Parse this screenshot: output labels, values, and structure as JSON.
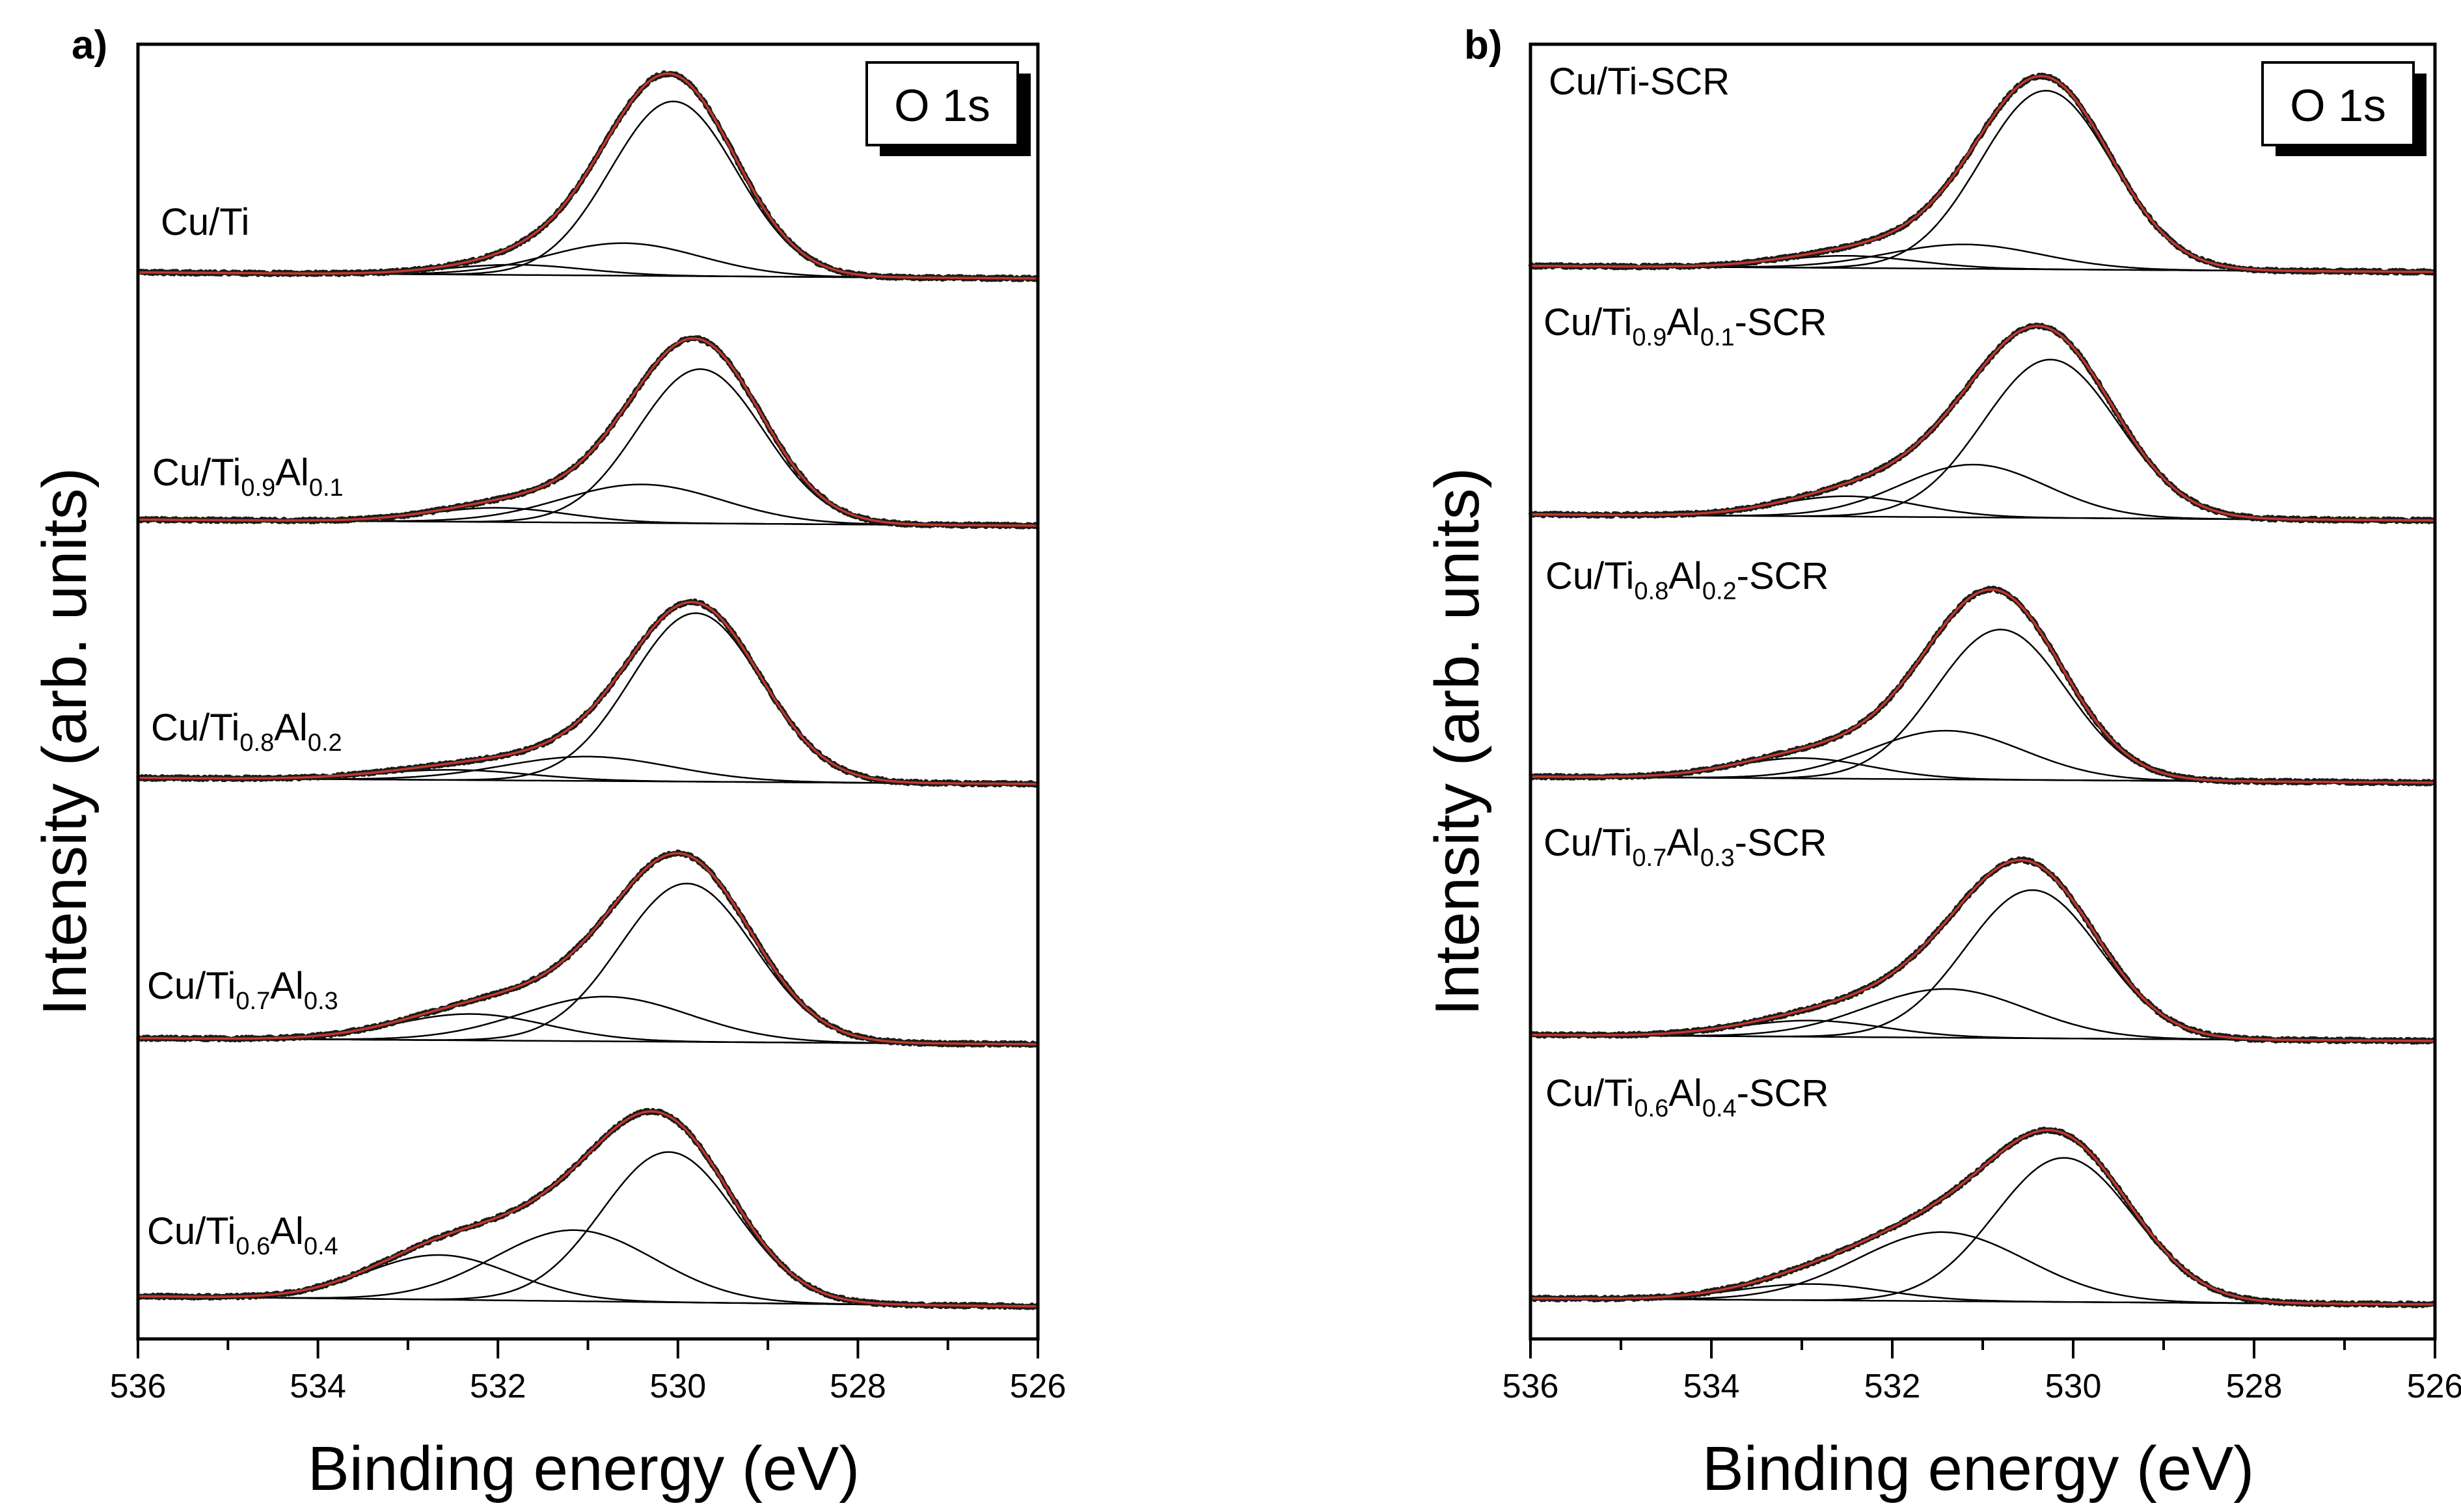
{
  "chart_data": [
    {
      "type": "line",
      "panel_label": "a)",
      "badge": "O 1s",
      "xlabel": "Binding energy (eV)",
      "ylabel": "Intensity (arb. units)",
      "xlim": [
        536,
        526
      ],
      "xticks": [
        "536",
        "534",
        "532",
        "530",
        "528",
        "526"
      ],
      "grid": false,
      "series": [
        {
          "name": "Cu/Ti",
          "label_parts": [
            {
              "t": "Cu/Ti",
              "sub": false
            }
          ],
          "components": [
            {
              "center": 530.05,
              "fwhm": 1.65,
              "height": 0.86
            },
            {
              "center": 530.6,
              "fwhm": 2.0,
              "height": 0.16
            },
            {
              "center": 531.8,
              "fwhm": 1.8,
              "height": 0.05
            }
          ],
          "baseline_left": 0.03,
          "baseline_right": 0.0
        },
        {
          "name": "Cu/Ti0.9Al0.1",
          "label_parts": [
            {
              "t": "Cu/Ti",
              "sub": false
            },
            {
              "t": "0.9",
              "sub": true
            },
            {
              "t": "Al",
              "sub": false
            },
            {
              "t": "0.1",
              "sub": true
            }
          ],
          "components": [
            {
              "center": 529.75,
              "fwhm": 1.65,
              "height": 0.76
            },
            {
              "center": 530.4,
              "fwhm": 2.1,
              "height": 0.19
            },
            {
              "center": 532.0,
              "fwhm": 1.8,
              "height": 0.07
            }
          ],
          "baseline_left": 0.03,
          "baseline_right": 0.0
        },
        {
          "name": "Cu/Ti0.8Al0.2",
          "label_parts": [
            {
              "t": "Cu/Ti",
              "sub": false
            },
            {
              "t": "0.8",
              "sub": true
            },
            {
              "t": "Al",
              "sub": false
            },
            {
              "t": "0.2",
              "sub": true
            }
          ],
          "components": [
            {
              "center": 529.8,
              "fwhm": 1.7,
              "height": 0.83
            },
            {
              "center": 531.0,
              "fwhm": 2.2,
              "height": 0.12
            },
            {
              "center": 532.5,
              "fwhm": 2.0,
              "height": 0.05
            }
          ],
          "baseline_left": 0.03,
          "baseline_right": 0.0
        },
        {
          "name": "Cu/Ti0.7Al0.3",
          "label_parts": [
            {
              "t": "Cu/Ti",
              "sub": false
            },
            {
              "t": "0.7",
              "sub": true
            },
            {
              "t": "Al",
              "sub": false
            },
            {
              "t": "0.3",
              "sub": true
            }
          ],
          "components": [
            {
              "center": 529.9,
              "fwhm": 1.75,
              "height": 0.78
            },
            {
              "center": 530.8,
              "fwhm": 2.2,
              "height": 0.22
            },
            {
              "center": 532.3,
              "fwhm": 2.0,
              "height": 0.13
            }
          ],
          "baseline_left": 0.03,
          "baseline_right": 0.0
        },
        {
          "name": "Cu/Ti0.6Al0.4",
          "label_parts": [
            {
              "t": "Cu/Ti",
              "sub": false
            },
            {
              "t": "0.6",
              "sub": true
            },
            {
              "t": "Al",
              "sub": false
            },
            {
              "t": "0.4",
              "sub": true
            }
          ],
          "components": [
            {
              "center": 530.1,
              "fwhm": 1.75,
              "height": 0.74
            },
            {
              "center": 531.15,
              "fwhm": 2.1,
              "height": 0.35
            },
            {
              "center": 532.65,
              "fwhm": 1.9,
              "height": 0.22
            }
          ],
          "baseline_left": 0.05,
          "baseline_right": 0.0
        }
      ]
    },
    {
      "type": "line",
      "panel_label": "b)",
      "badge": "O 1s",
      "xlabel": "Binding energy (eV)",
      "ylabel": "Intensity (arb. units)",
      "xlim": [
        536,
        526
      ],
      "xticks": [
        "536",
        "534",
        "532",
        "530",
        "528",
        "526"
      ],
      "grid": false,
      "series": [
        {
          "name": "Cu/Ti-SCR",
          "label_parts": [
            {
              "t": "Cu/Ti-SCR",
              "sub": false
            }
          ],
          "components": [
            {
              "center": 530.3,
              "fwhm": 1.7,
              "height": 0.88
            },
            {
              "center": 531.2,
              "fwhm": 2.0,
              "height": 0.12
            },
            {
              "center": 532.5,
              "fwhm": 1.8,
              "height": 0.06
            }
          ],
          "baseline_left": 0.03,
          "baseline_right": 0.0
        },
        {
          "name": "Cu/Ti0.9Al0.1-SCR",
          "label_parts": [
            {
              "t": "Cu/Ti",
              "sub": false
            },
            {
              "t": "0.9",
              "sub": true
            },
            {
              "t": "Al",
              "sub": false
            },
            {
              "t": "0.1",
              "sub": true
            },
            {
              "t": "-SCR",
              "sub": false
            }
          ],
          "components": [
            {
              "center": 530.25,
              "fwhm": 1.75,
              "height": 0.78
            },
            {
              "center": 531.1,
              "fwhm": 1.9,
              "height": 0.26
            },
            {
              "center": 532.5,
              "fwhm": 1.8,
              "height": 0.1
            }
          ],
          "baseline_left": 0.03,
          "baseline_right": 0.0
        },
        {
          "name": "Cu/Ti0.8Al0.2-SCR",
          "label_parts": [
            {
              "t": "Cu/Ti",
              "sub": false
            },
            {
              "t": "0.8",
              "sub": true
            },
            {
              "t": "Al",
              "sub": false
            },
            {
              "t": "0.2",
              "sub": true
            },
            {
              "t": "-SCR",
              "sub": false
            }
          ],
          "components": [
            {
              "center": 530.8,
              "fwhm": 1.7,
              "height": 0.74
            },
            {
              "center": 531.4,
              "fwhm": 2.0,
              "height": 0.24
            },
            {
              "center": 533.0,
              "fwhm": 1.8,
              "height": 0.1
            }
          ],
          "baseline_left": 0.03,
          "baseline_right": 0.0
        },
        {
          "name": "Cu/Ti0.7Al0.3-SCR",
          "label_parts": [
            {
              "t": "Cu/Ti",
              "sub": false
            },
            {
              "t": "0.7",
              "sub": true
            },
            {
              "t": "Al",
              "sub": false
            },
            {
              "t": "0.3",
              "sub": true
            },
            {
              "t": "-SCR",
              "sub": false
            }
          ],
          "components": [
            {
              "center": 530.45,
              "fwhm": 1.75,
              "height": 0.73
            },
            {
              "center": 531.4,
              "fwhm": 2.1,
              "height": 0.24
            },
            {
              "center": 532.9,
              "fwhm": 1.9,
              "height": 0.08
            }
          ],
          "baseline_left": 0.03,
          "baseline_right": 0.0
        },
        {
          "name": "Cu/Ti0.6Al0.4-SCR",
          "label_parts": [
            {
              "t": "Cu/Ti",
              "sub": false
            },
            {
              "t": "0.6",
              "sub": true
            },
            {
              "t": "Al",
              "sub": false
            },
            {
              "t": "0.4",
              "sub": true
            },
            {
              "t": "-SCR",
              "sub": false
            }
          ],
          "components": [
            {
              "center": 530.1,
              "fwhm": 1.8,
              "height": 0.71
            },
            {
              "center": 531.45,
              "fwhm": 2.2,
              "height": 0.34
            },
            {
              "center": 532.9,
              "fwhm": 1.9,
              "height": 0.08
            }
          ],
          "baseline_left": 0.03,
          "baseline_right": 0.0
        }
      ]
    }
  ]
}
